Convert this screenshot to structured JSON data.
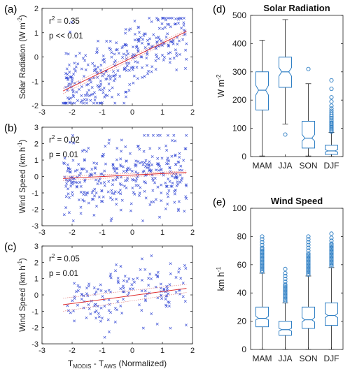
{
  "figure": {
    "panels": [
      "(a)",
      "(b)",
      "(c)",
      "(d)",
      "(e)"
    ]
  },
  "chart_data": [
    {
      "id": "a",
      "panel": "(a)",
      "type": "scatter",
      "ylabel": "Solar Radiation (W m^-2)",
      "ylabel_base": "Solar Radiation (W m",
      "ylabel_sup": "-2",
      "ylabel_tail": ")",
      "xlabel": "",
      "xlim": [
        -3,
        2
      ],
      "ylim": [
        -2,
        2
      ],
      "xticks": [
        -3,
        -2,
        -1,
        0,
        1,
        2
      ],
      "yticks": [
        -2,
        -1,
        0,
        1,
        2
      ],
      "stats": {
        "r2_label": "r",
        "r2_sup": "2",
        "r2_value": " = 0.35",
        "p_text": "p << 0.01"
      },
      "fit": {
        "x": [
          -2.3,
          1.8
        ],
        "y": [
          -1.4,
          1.05
        ]
      },
      "ci_offset": 0.07,
      "scatter": {
        "n": 340,
        "seed": 11,
        "x_range": [
          -2.3,
          1.8
        ],
        "resid_sd": 0.75,
        "clip": [
          -1.9,
          1.6
        ],
        "color": "#3b4fd6"
      }
    },
    {
      "id": "b",
      "panel": "(b)",
      "type": "scatter",
      "ylabel": "Wind Speed (km h^-1)",
      "ylabel_base": "Wind Speed (km h",
      "ylabel_sup": "-1",
      "ylabel_tail": ")",
      "xlabel": "",
      "xlim": [
        -3,
        2
      ],
      "ylim": [
        -3,
        3
      ],
      "xticks": [
        -3,
        -2,
        -1,
        0,
        1,
        2
      ],
      "yticks": [
        -3,
        -2,
        -1,
        0,
        1,
        2,
        3
      ],
      "stats": {
        "r2_label": "r",
        "r2_sup": "2",
        "r2_value": " = 0.02",
        "p_text": "p = 0.01"
      },
      "fit": {
        "x": [
          -2.3,
          1.8
        ],
        "y": [
          -0.12,
          0.25
        ]
      },
      "ci_offset": 0.08,
      "scatter": {
        "n": 340,
        "seed": 23,
        "x_range": [
          -2.3,
          1.8
        ],
        "resid_sd": 1.05,
        "clip": [
          -2.7,
          2.5
        ],
        "color": "#3b4fd6"
      }
    },
    {
      "id": "c",
      "panel": "(c)",
      "type": "scatter",
      "ylabel": "Wind Speed (km h^-1)",
      "ylabel_base": "Wind Speed (km h",
      "ylabel_sup": "-1",
      "ylabel_tail": ")",
      "xlabel": "T_MODIS - T_AWS (Normalized)",
      "xlabel_parts": [
        "T",
        "MODIS",
        " - T",
        "AWS",
        " (Normalized)"
      ],
      "xlim": [
        -3,
        2
      ],
      "ylim": [
        -3,
        3
      ],
      "xticks": [
        -3,
        -2,
        -1,
        0,
        1,
        2
      ],
      "yticks": [
        -3,
        -2,
        -1,
        0,
        1,
        2,
        3
      ],
      "stats": {
        "r2_label": "r",
        "r2_sup": "2",
        "r2_value": " = 0.05",
        "p_text": "p = 0.01"
      },
      "fit": {
        "x": [
          -2.3,
          1.8
        ],
        "y": [
          -0.6,
          0.4
        ]
      },
      "ci_offset": 0.25,
      "scatter": {
        "n": 160,
        "seed": 37,
        "x_range": [
          -2.2,
          1.8
        ],
        "resid_sd": 0.95,
        "clip": [
          -2.6,
          2.4
        ],
        "color": "#3b4fd6"
      }
    },
    {
      "id": "d",
      "panel": "(d)",
      "type": "box",
      "title": "Solar Radiation",
      "ylabel": "W m^-2",
      "ylabel_base": "W m",
      "ylabel_sup": "-2",
      "categories": [
        "MAM",
        "JJA",
        "SON",
        "DJF"
      ],
      "ylim": [
        0,
        500
      ],
      "yticks": [
        0,
        100,
        200,
        300,
        400,
        500
      ],
      "boxes": [
        {
          "q1": 165,
          "median": 235,
          "q3": 300,
          "notch": [
            218,
            252
          ],
          "whisker_low": 2,
          "whisker_high": 412,
          "outliers": []
        },
        {
          "q1": 245,
          "median": 300,
          "q3": 352,
          "notch": [
            285,
            315
          ],
          "whisker_low": 115,
          "whisker_high": 485,
          "outliers": [
            78
          ]
        },
        {
          "q1": 30,
          "median": 65,
          "q3": 125,
          "notch": [
            55,
            78
          ],
          "whisker_low": 2,
          "whisker_high": 258,
          "outliers": [
            310
          ]
        },
        {
          "q1": 8,
          "median": 20,
          "q3": 40,
          "notch": [
            16,
            25
          ],
          "whisker_low": 0,
          "whisker_high": 85,
          "outliers": [
            88,
            92,
            96,
            100,
            104,
            108,
            112,
            116,
            120,
            125,
            130,
            136,
            142,
            148,
            155,
            162,
            170,
            180,
            195,
            210,
            240,
            270
          ]
        }
      ],
      "color": "#2f7fc4"
    },
    {
      "id": "e",
      "panel": "(e)",
      "type": "box",
      "title": "Wind Speed",
      "ylabel": "km h^-1",
      "ylabel_base": "km h",
      "ylabel_sup": "-1",
      "categories": [
        "MAM",
        "JJA",
        "SON",
        "DJF"
      ],
      "ylim": [
        0,
        100
      ],
      "yticks": [
        0,
        20,
        40,
        60,
        80,
        100
      ],
      "boxes": [
        {
          "q1": 16,
          "median": 22,
          "q3": 30,
          "notch": [
            21,
            23.5
          ],
          "whisker_low": 0,
          "whisker_high": 54,
          "outliers": [
            55,
            56,
            57,
            58,
            59,
            60,
            61,
            62,
            63,
            64,
            65,
            66,
            67,
            68,
            69,
            70,
            71,
            72,
            74,
            76,
            78,
            80
          ]
        },
        {
          "q1": 10,
          "median": 14,
          "q3": 20,
          "notch": [
            13,
            15
          ],
          "whisker_low": 0,
          "whisker_high": 33,
          "outliers": [
            34,
            35,
            36,
            37,
            38,
            39,
            40,
            41,
            42,
            43,
            44,
            45,
            46,
            48,
            50,
            52,
            54,
            57
          ]
        },
        {
          "q1": 15,
          "median": 21,
          "q3": 30,
          "notch": [
            19.5,
            22.5
          ],
          "whisker_low": 0,
          "whisker_high": 52,
          "outliers": [
            53,
            54,
            55,
            56,
            57,
            58,
            59,
            60,
            61,
            62,
            63,
            64,
            65,
            66,
            67,
            68,
            70,
            72,
            74,
            76,
            78,
            80
          ]
        },
        {
          "q1": 17,
          "median": 24,
          "q3": 33,
          "notch": [
            22.5,
            25.5
          ],
          "whisker_low": 0,
          "whisker_high": 58,
          "outliers": [
            59,
            60,
            61,
            62,
            63,
            64,
            65,
            66,
            67,
            68,
            69,
            70,
            71,
            72,
            73,
            74,
            75,
            77,
            79,
            82
          ]
        }
      ],
      "color": "#2f7fc4"
    }
  ]
}
